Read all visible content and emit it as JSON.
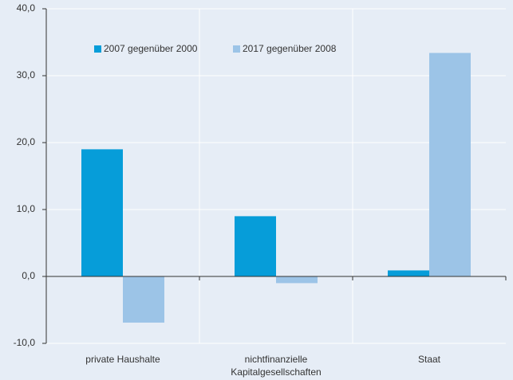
{
  "chart_data": {
    "type": "bar",
    "categories": [
      "private Haushalte",
      "nichtfinanzielle Kapitalgesellschaften",
      "Staat"
    ],
    "series": [
      {
        "name": "2007 gegenüber 2000",
        "color": "#069dd9",
        "values": [
          19.0,
          9.0,
          0.9
        ]
      },
      {
        "name": "2017 gegenüber 2008",
        "color": "#9cc4e7",
        "values": [
          -6.9,
          -1.0,
          33.4
        ]
      }
    ],
    "ylim": [
      -10,
      40
    ],
    "yticks": [
      {
        "value": -10,
        "label": "-10,0"
      },
      {
        "value": 0,
        "label": "0,0"
      },
      {
        "value": 10,
        "label": "10,0"
      },
      {
        "value": 20,
        "label": "20,0"
      },
      {
        "value": 30,
        "label": "30,0"
      },
      {
        "value": 40,
        "label": "40,0"
      }
    ],
    "grid": true,
    "legend": "top"
  }
}
